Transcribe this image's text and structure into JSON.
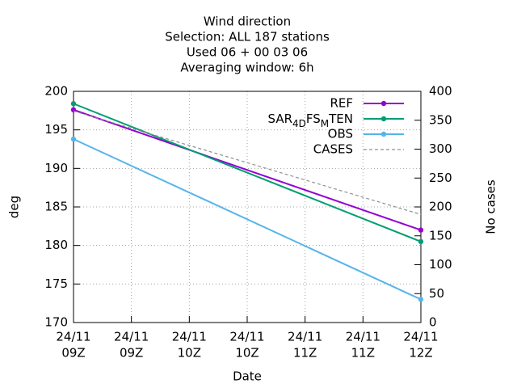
{
  "chart_data": {
    "type": "line",
    "title": [
      "Wind direction",
      "Selection: ALL    187 stations",
      "Used  06 + 00 03 06",
      "Averaging window:  6h"
    ],
    "xlabel": "Date",
    "ylabel": "deg",
    "y2label": "No cases",
    "x": [
      9,
      12
    ],
    "xlim": [
      9,
      12
    ],
    "xticks": [
      {
        "value": 9,
        "label": [
          "24/11",
          "09Z"
        ]
      },
      {
        "value": 9.5,
        "label": [
          "24/11",
          "09Z"
        ]
      },
      {
        "value": 10,
        "label": [
          "24/11",
          "10Z"
        ]
      },
      {
        "value": 10.5,
        "label": [
          "24/11",
          "10Z"
        ]
      },
      {
        "value": 11,
        "label": [
          "24/11",
          "11Z"
        ]
      },
      {
        "value": 11.5,
        "label": [
          "24/11",
          "11Z"
        ]
      },
      {
        "value": 12,
        "label": [
          "24/11",
          "12Z"
        ]
      }
    ],
    "ylim": [
      170,
      200
    ],
    "yticks": [
      170,
      175,
      180,
      185,
      190,
      195,
      200
    ],
    "y2lim": [
      0,
      400
    ],
    "y2ticks": [
      0,
      50,
      100,
      150,
      200,
      250,
      300,
      350,
      400
    ],
    "grid": true,
    "series": [
      {
        "name": "REF",
        "color": "#9400d3",
        "values": [
          197.6,
          182.0
        ]
      },
      {
        "name": [
          "SAR",
          "4D",
          "FS",
          "M",
          "TEN"
        ],
        "color": "#009e73",
        "values": [
          198.4,
          180.5
        ]
      },
      {
        "name": "OBS",
        "color": "#56b4e9",
        "values": [
          193.8,
          173.0
        ]
      },
      {
        "name": "CASES",
        "color": "#909090",
        "values": [
          366,
          187
        ],
        "axis": "y2",
        "dashed": true
      }
    ]
  }
}
